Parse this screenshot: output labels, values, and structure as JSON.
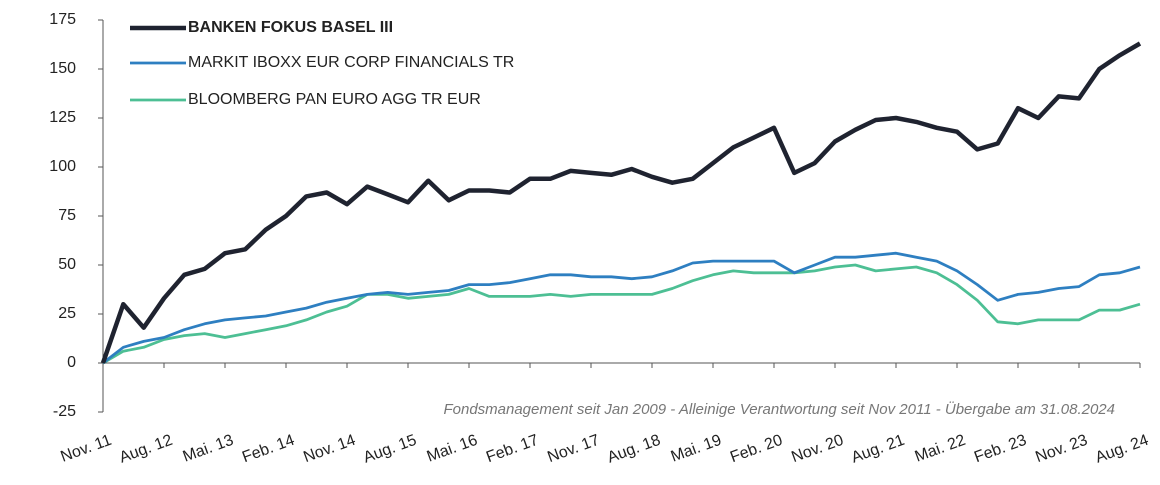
{
  "chart_data": {
    "type": "line",
    "categories": [
      "Nov. 11",
      null,
      null,
      "Aug. 12",
      null,
      null,
      "Mai. 13",
      null,
      null,
      "Feb. 14",
      null,
      null,
      "Nov. 14",
      null,
      null,
      "Aug. 15",
      null,
      null,
      "Mai. 16",
      null,
      null,
      "Feb. 17",
      null,
      null,
      "Nov. 17",
      null,
      null,
      "Aug. 18",
      null,
      null,
      "Mai. 19",
      null,
      null,
      "Feb. 20",
      null,
      null,
      "Nov. 20",
      null,
      null,
      "Aug. 21",
      null,
      null,
      "Mai. 22",
      null,
      null,
      "Feb. 23",
      null,
      null,
      "Nov. 23",
      null,
      null,
      "Aug. 24"
    ],
    "series": [
      {
        "name": "BANKEN FOKUS BASEL III",
        "color": "#1f2330",
        "values": [
          0,
          30,
          18,
          33,
          45,
          48,
          56,
          58,
          68,
          75,
          85,
          87,
          81,
          90,
          86,
          82,
          93,
          83,
          88,
          88,
          87,
          94,
          94,
          98,
          97,
          96,
          99,
          95,
          92,
          94,
          102,
          110,
          115,
          120,
          97,
          102,
          113,
          119,
          124,
          125,
          123,
          120,
          118,
          109,
          112,
          130,
          125,
          136,
          135,
          150,
          157,
          163
        ]
      },
      {
        "name": "MARKIT IBOXX EUR CORP FINANCIALS TR",
        "color": "#2e7fc1",
        "values": [
          0,
          8,
          11,
          13,
          17,
          20,
          22,
          23,
          24,
          26,
          28,
          31,
          33,
          35,
          36,
          35,
          36,
          37,
          40,
          40,
          41,
          43,
          45,
          45,
          44,
          44,
          43,
          44,
          47,
          51,
          52,
          52,
          52,
          52,
          46,
          50,
          54,
          54,
          55,
          56,
          54,
          52,
          47,
          40,
          32,
          35,
          36,
          38,
          39,
          45,
          46,
          49
        ]
      },
      {
        "name": "BLOOMBERG PAN EURO AGG TR EUR",
        "color": "#4dbf94",
        "values": [
          0,
          6,
          8,
          12,
          14,
          15,
          13,
          15,
          17,
          19,
          22,
          26,
          29,
          35,
          35,
          33,
          34,
          35,
          38,
          34,
          34,
          34,
          35,
          34,
          35,
          35,
          35,
          35,
          38,
          42,
          45,
          47,
          46,
          46,
          46,
          47,
          49,
          50,
          47,
          48,
          49,
          46,
          40,
          32,
          21,
          20,
          22,
          22,
          22,
          27,
          27,
          30
        ]
      }
    ],
    "annotation": "Fondsmanagement seit Jan 2009 - Alleinige Verantwortung seit Nov 2011 - Übergabe am 31.08.2024",
    "ylim": [
      -25,
      175
    ],
    "yticks": [
      -25,
      0,
      25,
      50,
      75,
      100,
      125,
      150,
      175
    ],
    "grid": false,
    "legend": "top-left"
  }
}
